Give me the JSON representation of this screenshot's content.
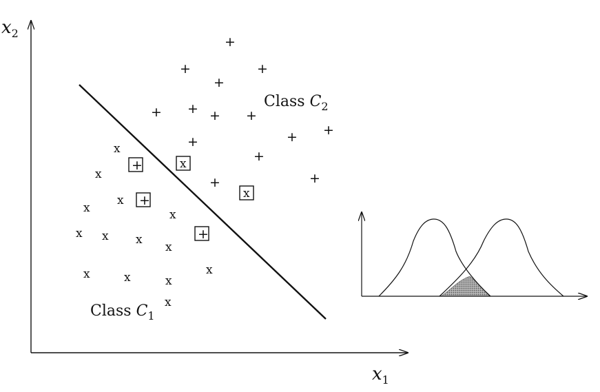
{
  "diagram": {
    "axes": {
      "x_label": "x",
      "x_sub": "1",
      "y_label": "x",
      "y_sub": "2"
    },
    "classes": [
      {
        "label": "Class ",
        "symbol": "C",
        "sub": "1"
      },
      {
        "label": "Class ",
        "symbol": "C",
        "sub": "2"
      }
    ],
    "markers": {
      "class1": "x",
      "class2": "+"
    },
    "inset": {
      "overlap_fill": "#9a9a9a"
    }
  }
}
